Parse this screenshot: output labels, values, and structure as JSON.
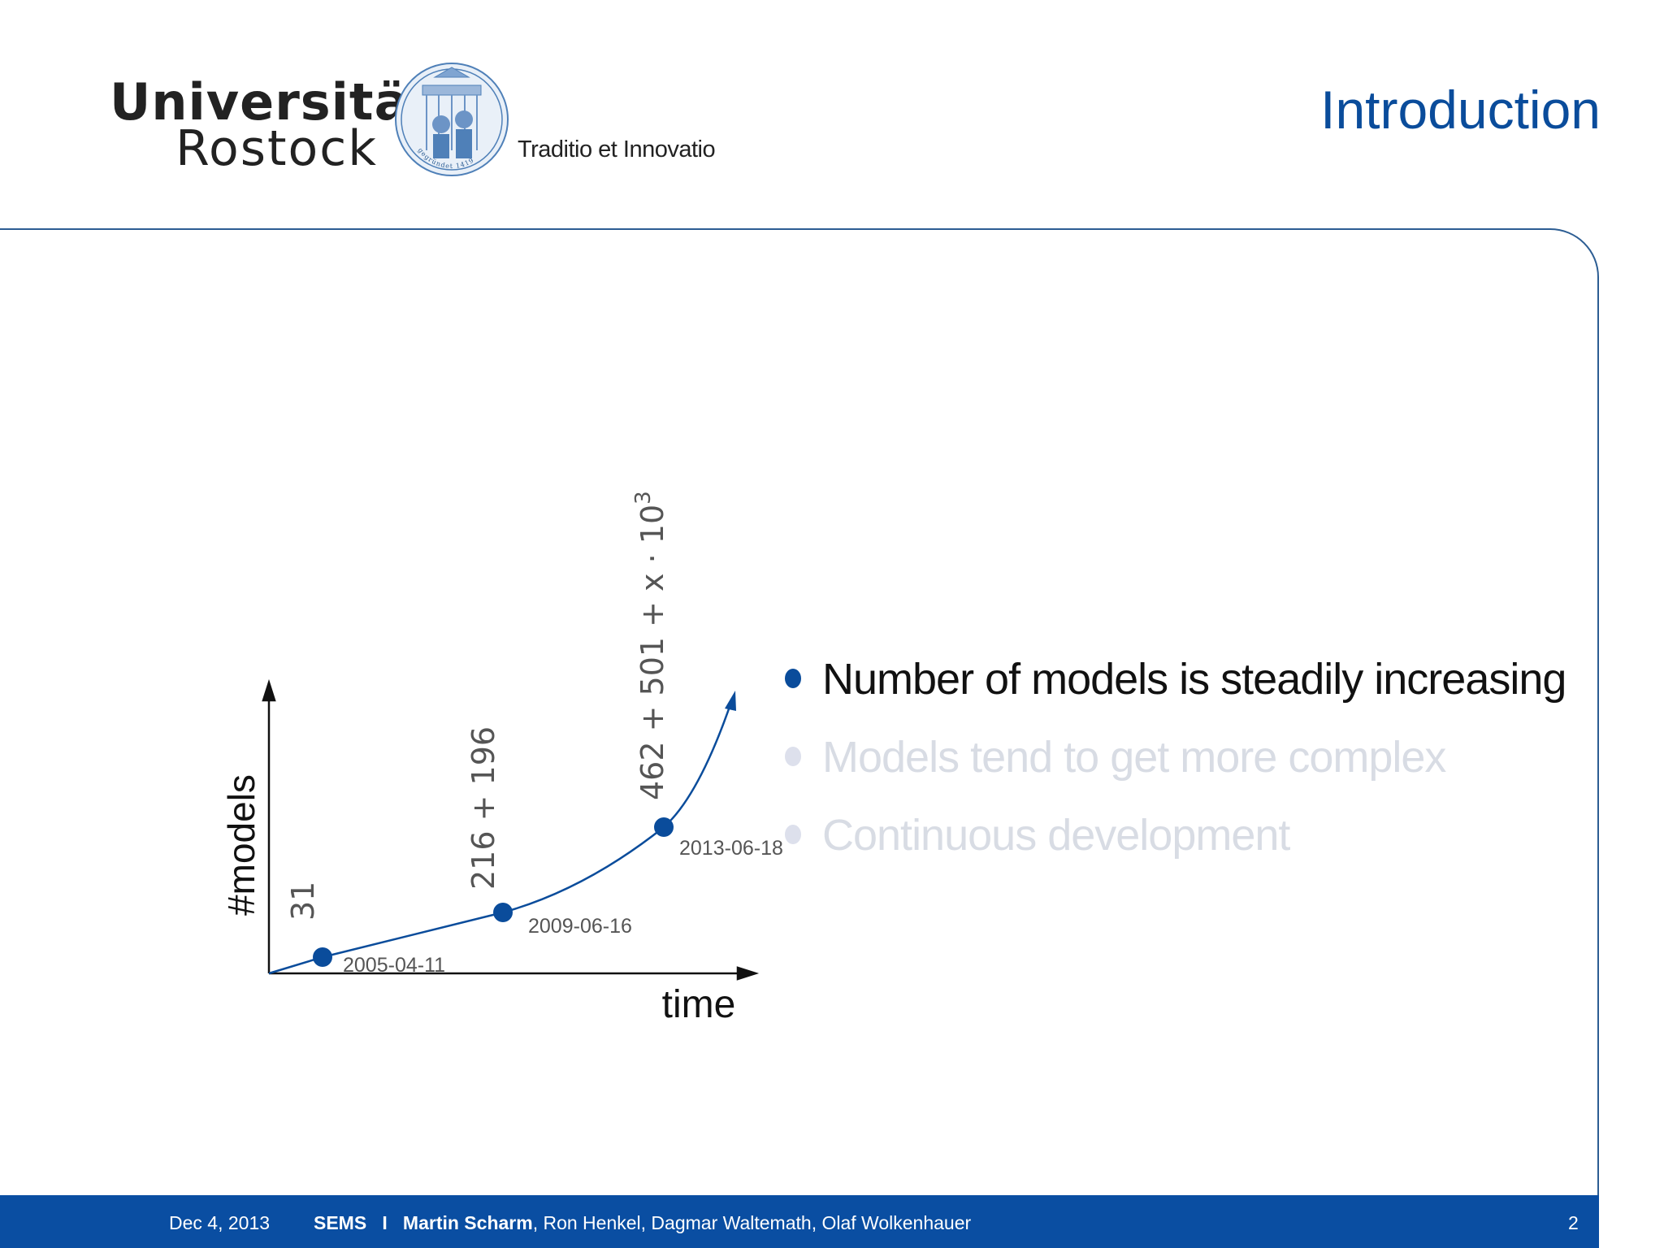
{
  "header": {
    "logo_line1": "Universität",
    "logo_line2": "Rostock",
    "seal_text": "gegründet 1419",
    "motto": "Traditio et Innovatio",
    "slide_title": "Introduction"
  },
  "colors": {
    "accent": "#0a4c9b",
    "footer_bg": "#0a4ea2",
    "dim_text": "#d8dce4"
  },
  "chart_data": {
    "type": "line",
    "title": "",
    "xlabel": "time",
    "ylabel": "#models",
    "points": [
      {
        "date": "2005-04-11",
        "label": "31"
      },
      {
        "date": "2009-06-16",
        "label": "216 + 196"
      },
      {
        "date": "2013-06-18",
        "label": "462 + 501 + x · 10",
        "superscript": "3"
      }
    ]
  },
  "bullets": [
    {
      "text": "Number of models is steadily increasing",
      "state": "active"
    },
    {
      "text": "Models tend to get more complex",
      "state": "dim"
    },
    {
      "text": "Continuous development",
      "state": "dim"
    }
  ],
  "footer": {
    "date": "Dec 4, 2013",
    "project": "SEMS",
    "separator": "I",
    "presenter": "Martin Scharm",
    "coauthors": ", Ron Henkel, Dagmar Waltemath, Olaf Wolkenhauer",
    "page": "2"
  }
}
